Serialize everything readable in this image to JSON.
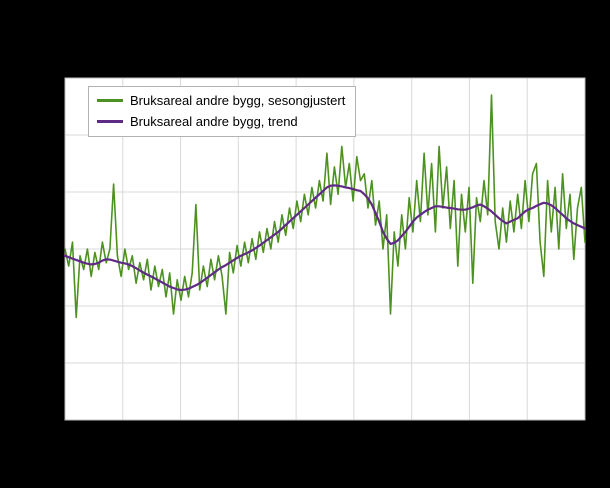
{
  "chart": {
    "background_color": "#000000",
    "plot_background_color": "#ffffff",
    "grid_color": "#d9d9d9",
    "border_color": "#bdbdbd"
  },
  "legend": {
    "items": [
      {
        "label": "Bruksareal andre bygg, sesongjustert",
        "color": "#4d9221"
      },
      {
        "label": "Bruksareal andre bygg, trend",
        "color": "#5f2a84"
      }
    ]
  },
  "chart_data": {
    "type": "line",
    "title": "",
    "xlabel": "",
    "ylabel": "",
    "ylim": [
      0,
      100
    ],
    "grid": {
      "on": true,
      "vertical_divisions": 9,
      "horizontal_divisions": 6
    },
    "legend_position": "top-left",
    "series": [
      {
        "name": "Bruksareal andre bygg, sesongjustert",
        "color": "#4d9221",
        "stroke_width": 1.6,
        "values": [
          50,
          45,
          52,
          30,
          48,
          44,
          50,
          42,
          49,
          44,
          52,
          46,
          50,
          69,
          48,
          42,
          50,
          44,
          48,
          40,
          46,
          41,
          47,
          38,
          45,
          39,
          44,
          36,
          43,
          31,
          41,
          35,
          42,
          36,
          43,
          63,
          38,
          45,
          39,
          47,
          41,
          48,
          42,
          31,
          49,
          43,
          51,
          45,
          52,
          46,
          53,
          47,
          55,
          49,
          56,
          50,
          58,
          52,
          60,
          54,
          62,
          56,
          64,
          58,
          66,
          60,
          68,
          62,
          70,
          64,
          78,
          63,
          74,
          66,
          80,
          68,
          75,
          64,
          77,
          70,
          72,
          62,
          70,
          57,
          64,
          50,
          60,
          31,
          55,
          45,
          60,
          50,
          65,
          55,
          70,
          58,
          78,
          60,
          75,
          55,
          80,
          62,
          74,
          56,
          70,
          45,
          66,
          55,
          68,
          40,
          65,
          58,
          70,
          60,
          95,
          58,
          50,
          62,
          52,
          64,
          55,
          66,
          56,
          70,
          58,
          72,
          75,
          52,
          42,
          70,
          55,
          68,
          50,
          72,
          56,
          66,
          47,
          62,
          68,
          52
        ]
      },
      {
        "name": "Bruksareal andre bygg, trend",
        "color": "#5f2a84",
        "stroke_width": 2.2,
        "values": [
          48,
          47.6,
          47.2,
          46.8,
          46.4,
          46,
          45.7,
          45.5,
          45.6,
          46,
          46.6,
          47,
          46.9,
          46.6,
          46.3,
          46,
          45.8,
          45.5,
          45,
          44.4,
          43.7,
          43.1,
          42.5,
          42,
          41.4,
          40.8,
          40.2,
          39.6,
          39,
          38.6,
          38.2,
          38,
          38.1,
          38.4,
          38.9,
          39.4,
          40,
          40.8,
          41.6,
          42.4,
          43.2,
          44,
          44.7,
          45.3,
          46,
          46.7,
          47.4,
          48,
          48.5,
          49,
          49.6,
          50.3,
          51,
          51.8,
          52.6,
          53.4,
          54.2,
          55,
          56,
          57,
          58,
          59,
          60,
          61,
          62,
          63,
          64,
          65,
          66,
          67,
          68,
          68.5,
          68.6,
          68.5,
          68.3,
          68,
          67.8,
          67.5,
          67.2,
          67,
          66,
          64.8,
          63,
          60.5,
          58,
          55,
          53,
          51.5,
          51.8,
          52.5,
          53.8,
          55,
          56.5,
          58,
          59.2,
          60,
          60.8,
          61.5,
          62,
          62.5,
          62.5,
          62.3,
          62.1,
          62,
          61.8,
          61.6,
          61.5,
          61.5,
          61.8,
          62.2,
          62.7,
          63,
          62.5,
          61.8,
          61,
          60,
          59,
          58.2,
          57.5,
          58,
          58.5,
          59,
          60,
          61,
          61.6,
          62,
          62.6,
          63.1,
          63.5,
          63.3,
          62.8,
          62,
          61,
          60,
          59,
          58.2,
          57.5,
          57,
          56.5,
          56
        ]
      }
    ]
  }
}
